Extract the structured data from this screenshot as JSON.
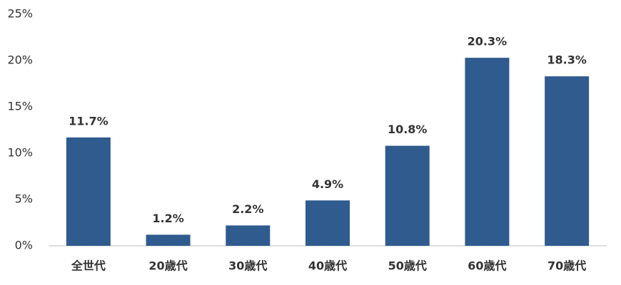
{
  "chart_data": {
    "type": "bar",
    "categories": [
      "全世代",
      "20歳代",
      "30歳代",
      "40歳代",
      "50歳代",
      "60歳代",
      "70歳代"
    ],
    "values": [
      11.7,
      1.2,
      2.2,
      4.9,
      10.8,
      20.3,
      18.3
    ],
    "value_labels": [
      "11.7%",
      "1.2%",
      "2.2%",
      "4.9%",
      "10.8%",
      "20.3%",
      "18.3%"
    ],
    "color": "#2f5b8e",
    "ylim": [
      0,
      25
    ],
    "yticks": [
      {
        "value": 0,
        "label": "0%"
      },
      {
        "value": 5,
        "label": "5%"
      },
      {
        "value": 10,
        "label": "10%"
      },
      {
        "value": 15,
        "label": "15%"
      },
      {
        "value": 20,
        "label": "20%"
      },
      {
        "value": 25,
        "label": "25%"
      }
    ],
    "grid": false
  }
}
